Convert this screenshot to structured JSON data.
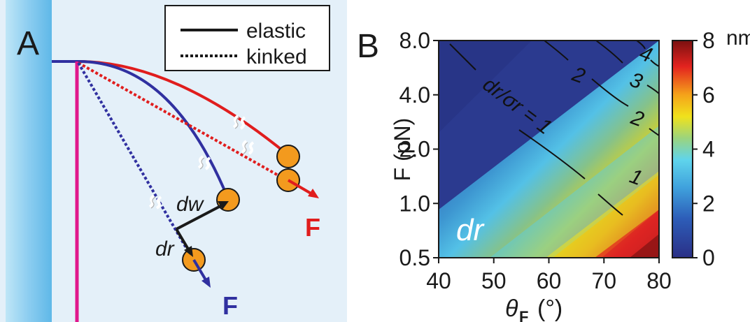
{
  "panel_a": {
    "label": "A",
    "legend": {
      "solid_label": "elastic",
      "dotted_label": "kinked"
    },
    "labels": {
      "dw": "dw",
      "dr": "dr",
      "force_red": "F",
      "force_blue": "F"
    },
    "colors": {
      "membrane": "#a8d8f0",
      "background": "#e4f0f9",
      "microtubule": "#e0188c",
      "red_fiber": "#e01d1d",
      "blue_fiber": "#3030a0",
      "bead": "#f39a1e"
    }
  },
  "panel_b": {
    "label": "B",
    "inner_label": "dr",
    "colorbar_unit": "nm"
  },
  "chart_data": {
    "type": "heatmap",
    "title": "",
    "xlabel_symbol": "θ",
    "xlabel_subscript": "F",
    "xlabel_unit": "(°)",
    "ylabel": "F (pN)",
    "x_ticks": [
      40,
      50,
      60,
      70,
      80
    ],
    "y_ticks": [
      "0.5",
      "1.0",
      "2.0",
      "4.0",
      "8.0"
    ],
    "y_tick_values": [
      0.5,
      1.0,
      2.0,
      4.0,
      8.0
    ],
    "y_scale": "log2",
    "xlim": [
      40,
      80
    ],
    "ylim": [
      0.5,
      8.0
    ],
    "colorbar": {
      "min": 0,
      "max": 8,
      "ticks": [
        "0",
        "2",
        "4",
        "6",
        "8"
      ],
      "unit": "nm"
    },
    "contours": [
      {
        "label": "dr/σr = 1",
        "level": 1
      },
      {
        "label": "1",
        "level": 1
      },
      {
        "label": "2",
        "level": 2
      },
      {
        "label": "2",
        "level": 2
      },
      {
        "label": "3",
        "level": 3
      },
      {
        "label": "4",
        "level": 4
      }
    ]
  }
}
